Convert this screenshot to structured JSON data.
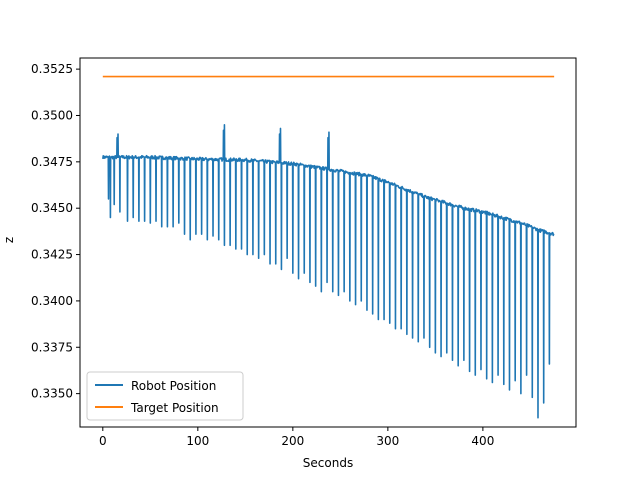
{
  "chart_data": {
    "type": "line",
    "title": "",
    "xlabel": "Seconds",
    "ylabel": "z",
    "xlim": [
      -24,
      498
    ],
    "ylim": [
      0.3332,
      0.3531
    ],
    "xticks": [
      0,
      100,
      200,
      300,
      400
    ],
    "yticks": [
      0.335,
      0.3375,
      0.34,
      0.3425,
      0.345,
      0.3475,
      0.35,
      0.3525
    ],
    "xtick_labels": [
      "0",
      "100",
      "200",
      "300",
      "400"
    ],
    "ytick_labels": [
      "0.3350",
      "0.3375",
      "0.3400",
      "0.3425",
      "0.3450",
      "0.3475",
      "0.3500",
      "0.3525"
    ],
    "grid": false,
    "legend_position": "lower-left",
    "series": [
      {
        "name": "Robot Position",
        "color": "#1f77b4",
        "style": "noisy-line",
        "baseline": {
          "x": [
            0,
            50,
            100,
            150,
            200,
            250,
            280,
            300,
            320,
            340,
            360,
            380,
            400,
            420,
            440,
            460,
            475
          ],
          "y": [
            0.34775,
            0.34775,
            0.34765,
            0.3476,
            0.3474,
            0.347,
            0.34675,
            0.3464,
            0.346,
            0.3456,
            0.3453,
            0.345,
            0.3448,
            0.3445,
            0.3442,
            0.3438,
            0.3436
          ]
        },
        "dips": {
          "x": [
            6,
            8,
            12,
            18,
            26,
            32,
            38,
            44,
            50,
            56,
            62,
            68,
            74,
            80,
            86,
            92,
            98,
            104,
            110,
            116,
            122,
            128,
            134,
            140,
            146,
            152,
            158,
            164,
            170,
            176,
            182,
            188,
            194,
            200,
            206,
            212,
            218,
            224,
            230,
            236,
            242,
            248,
            254,
            260,
            266,
            272,
            278,
            284,
            290,
            296,
            302,
            308,
            314,
            320,
            326,
            332,
            338,
            344,
            350,
            356,
            362,
            368,
            374,
            380,
            386,
            392,
            398,
            404,
            410,
            416,
            422,
            428,
            434,
            440,
            446,
            452,
            458,
            464,
            470
          ],
          "y": [
            0.3455,
            0.3445,
            0.3452,
            0.3448,
            0.3443,
            0.3445,
            0.3443,
            0.3443,
            0.3442,
            0.3443,
            0.344,
            0.344,
            0.344,
            0.3442,
            0.3436,
            0.3433,
            0.3436,
            0.3436,
            0.3433,
            0.3435,
            0.3433,
            0.343,
            0.343,
            0.3428,
            0.3428,
            0.3425,
            0.3425,
            0.3423,
            0.3425,
            0.342,
            0.342,
            0.3417,
            0.3423,
            0.3415,
            0.3412,
            0.3415,
            0.341,
            0.3408,
            0.3405,
            0.341,
            0.3405,
            0.3403,
            0.3405,
            0.34,
            0.3398,
            0.34,
            0.3395,
            0.3393,
            0.339,
            0.339,
            0.3388,
            0.3385,
            0.3385,
            0.3382,
            0.338,
            0.3378,
            0.338,
            0.3375,
            0.3372,
            0.337,
            0.3372,
            0.3368,
            0.3365,
            0.3368,
            0.3362,
            0.336,
            0.3363,
            0.3358,
            0.3356,
            0.336,
            0.3355,
            0.3352,
            0.3357,
            0.335,
            0.336,
            0.3348,
            0.3337,
            0.3345,
            0.3366
          ]
        },
        "spikes": {
          "x": [
            15,
            16,
            127,
            128,
            186,
            187,
            237,
            238
          ],
          "y": [
            0.3488,
            0.349,
            0.3492,
            0.3495,
            0.349,
            0.3493,
            0.3488,
            0.3491
          ]
        }
      },
      {
        "name": "Target Position",
        "color": "#ff7f0e",
        "style": "line",
        "x": [
          0,
          475
        ],
        "y": [
          0.3521,
          0.3521
        ]
      }
    ]
  }
}
